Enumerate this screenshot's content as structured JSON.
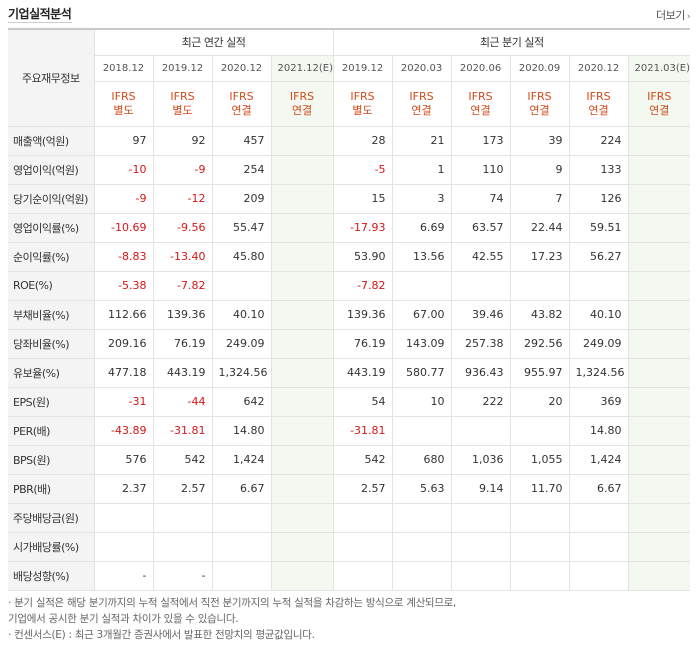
{
  "header": {
    "title": "기업실적분석",
    "more_label": "더보기"
  },
  "table": {
    "label_header": "주요재무정보",
    "groups": [
      "최근 연간 실적",
      "최근 분기 실적"
    ],
    "columns": [
      {
        "date": "2018.12",
        "ifrs": "IFRS",
        "basis": "별도",
        "estimate": false
      },
      {
        "date": "2019.12",
        "ifrs": "IFRS",
        "basis": "별도",
        "estimate": false
      },
      {
        "date": "2020.12",
        "ifrs": "IFRS",
        "basis": "연결",
        "estimate": false
      },
      {
        "date": "2021.12(E)",
        "ifrs": "IFRS",
        "basis": "연결",
        "estimate": true
      },
      {
        "date": "2019.12",
        "ifrs": "IFRS",
        "basis": "별도",
        "estimate": false
      },
      {
        "date": "2020.03",
        "ifrs": "IFRS",
        "basis": "연결",
        "estimate": false
      },
      {
        "date": "2020.06",
        "ifrs": "IFRS",
        "basis": "연결",
        "estimate": false
      },
      {
        "date": "2020.09",
        "ifrs": "IFRS",
        "basis": "연결",
        "estimate": false
      },
      {
        "date": "2020.12",
        "ifrs": "IFRS",
        "basis": "연결",
        "estimate": false
      },
      {
        "date": "2021.03(E)",
        "ifrs": "IFRS",
        "basis": "연결",
        "estimate": true
      }
    ],
    "rows": [
      {
        "label": "매출액(억원)",
        "values": [
          "97",
          "92",
          "457",
          "",
          "28",
          "21",
          "173",
          "39",
          "224",
          ""
        ]
      },
      {
        "label": "영업이익(억원)",
        "values": [
          "-10",
          "-9",
          "254",
          "",
          "-5",
          "1",
          "110",
          "9",
          "133",
          ""
        ]
      },
      {
        "label": "당기순이익(억원)",
        "values": [
          "-9",
          "-12",
          "209",
          "",
          "15",
          "3",
          "74",
          "7",
          "126",
          ""
        ]
      },
      {
        "label": "영업이익률(%)",
        "values": [
          "-10.69",
          "-9.56",
          "55.47",
          "",
          "-17.93",
          "6.69",
          "63.57",
          "22.44",
          "59.51",
          ""
        ]
      },
      {
        "label": "순이익률(%)",
        "values": [
          "-8.83",
          "-13.40",
          "45.80",
          "",
          "53.90",
          "13.56",
          "42.55",
          "17.23",
          "56.27",
          ""
        ]
      },
      {
        "label": "ROE(%)",
        "values": [
          "-5.38",
          "-7.82",
          "",
          "",
          "-7.82",
          "",
          "",
          "",
          "",
          ""
        ]
      },
      {
        "label": "부채비율(%)",
        "values": [
          "112.66",
          "139.36",
          "40.10",
          "",
          "139.36",
          "67.00",
          "39.46",
          "43.82",
          "40.10",
          ""
        ]
      },
      {
        "label": "당좌비율(%)",
        "values": [
          "209.16",
          "76.19",
          "249.09",
          "",
          "76.19",
          "143.09",
          "257.38",
          "292.56",
          "249.09",
          ""
        ]
      },
      {
        "label": "유보율(%)",
        "values": [
          "477.18",
          "443.19",
          "1,324.56",
          "",
          "443.19",
          "580.77",
          "936.43",
          "955.97",
          "1,324.56",
          ""
        ]
      },
      {
        "label": "EPS(원)",
        "values": [
          "-31",
          "-44",
          "642",
          "",
          "54",
          "10",
          "222",
          "20",
          "369",
          ""
        ]
      },
      {
        "label": "PER(배)",
        "values": [
          "-43.89",
          "-31.81",
          "14.80",
          "",
          "-31.81",
          "",
          "",
          "",
          "14.80",
          ""
        ]
      },
      {
        "label": "BPS(원)",
        "values": [
          "576",
          "542",
          "1,424",
          "",
          "542",
          "680",
          "1,036",
          "1,055",
          "1,424",
          ""
        ]
      },
      {
        "label": "PBR(배)",
        "values": [
          "2.37",
          "2.57",
          "6.67",
          "",
          "2.57",
          "5.63",
          "9.14",
          "11.70",
          "6.67",
          ""
        ]
      },
      {
        "label": "주당배당금(원)",
        "values": [
          "",
          "",
          "",
          "",
          "",
          "",
          "",
          "",
          "",
          ""
        ]
      },
      {
        "label": "시가배당률(%)",
        "values": [
          "",
          "",
          "",
          "",
          "",
          "",
          "",
          "",
          "",
          ""
        ]
      },
      {
        "label": "배당성향(%)",
        "values": [
          "-",
          "-",
          "",
          "",
          "",
          "",
          "",
          "",
          "",
          ""
        ]
      }
    ]
  },
  "notes": [
    "· 분기 실적은 해당 분기까지의 누적 실적에서 직전 분기까지의 누적 실적을 차감하는 방식으로 계산되므로,",
    "   기업에서 공시한 분기 실적과 차이가 있을 수 있습니다.",
    "· 컨센서스(E) : 최근 3개월간 증권사에서 발표한 전망치의 평균값입니다."
  ],
  "colors": {
    "negative": "#d81515",
    "ifrs": "#d14a1a",
    "estimate_bg": "#f3f8f0",
    "label_bg": "#f4f4f4"
  }
}
